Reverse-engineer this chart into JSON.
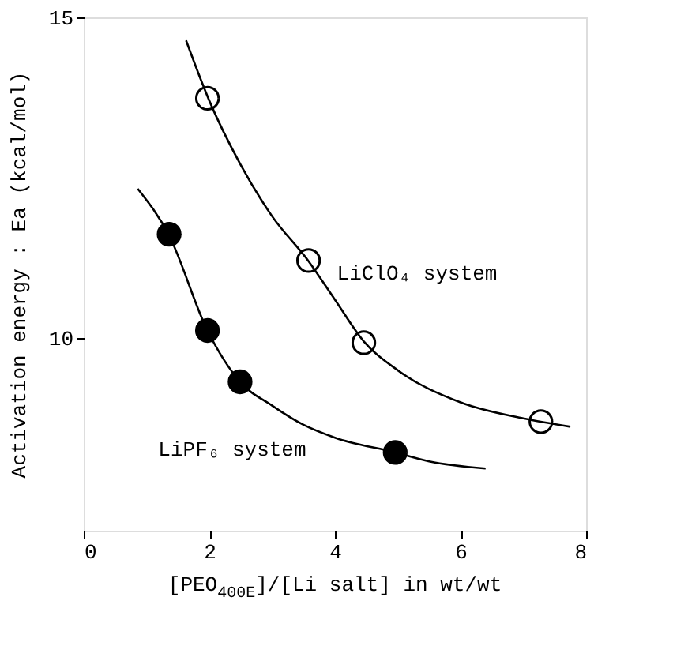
{
  "chart_data": {
    "type": "scatter",
    "xlabel": "[PEO$_{400E}$]/[Li salt] in wt/wt",
    "ylabel": "Activation energy : Ea    (kcal/mol)",
    "xlim": [
      0,
      8
    ],
    "ylim": [
      7,
      15
    ],
    "xticks": [
      0,
      2,
      4,
      6,
      8
    ],
    "yticks": [
      10,
      15
    ],
    "grid": false,
    "series": [
      {
        "name": "LiClO₄ system",
        "color": "#ffffff",
        "marker": "circle",
        "x": [
          1.97,
          3.58,
          4.46,
          7.28
        ],
        "values": [
          13.74,
          11.21,
          9.93,
          8.7
        ]
      },
      {
        "name": "LiPF₆ system",
        "color": "#000000",
        "marker": "circle",
        "x": [
          1.36,
          1.97,
          2.49,
          4.96
        ],
        "values": [
          11.62,
          10.12,
          9.32,
          8.22
        ]
      },
      {
        "type": "line",
        "color": "#000000",
        "marker": "none",
        "x": [
          1.63,
          2.0,
          2.5,
          3.0,
          3.58,
          4.0,
          4.46,
          5.0,
          6.0,
          7.0,
          7.75
        ],
        "values": [
          14.64,
          13.7,
          12.7,
          11.9,
          11.2,
          10.6,
          9.95,
          9.5,
          9.0,
          8.75,
          8.62
        ]
      },
      {
        "type": "line",
        "color": "#000000",
        "marker": "none",
        "x": [
          0.86,
          1.36,
          1.97,
          2.49,
          3.0,
          3.5,
          4.0,
          4.96,
          5.5,
          6.4
        ],
        "values": [
          12.33,
          11.6,
          10.12,
          9.32,
          8.95,
          8.65,
          8.45,
          8.22,
          8.08,
          7.97
        ]
      }
    ]
  }
}
